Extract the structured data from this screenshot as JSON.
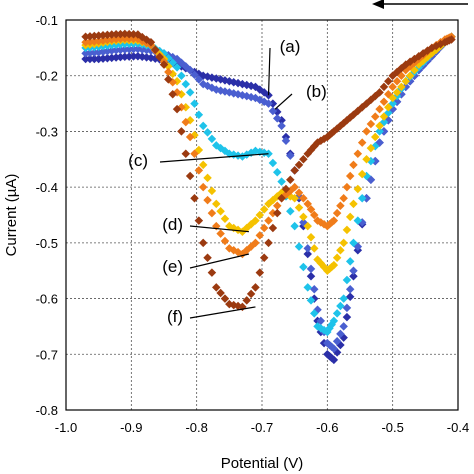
{
  "chart_data": {
    "type": "scatter",
    "title": "",
    "xlabel": "Potential (V)",
    "ylabel": "Current (µA)",
    "xlim": [
      -1.0,
      -0.4
    ],
    "ylim": [
      -0.8,
      -0.1
    ],
    "xticks": [
      "-1.0",
      "-0.9",
      "-0.8",
      "-0.7",
      "-0.6",
      "-0.5",
      "-0.4"
    ],
    "yticks": [
      "-0.1",
      "-0.2",
      "-0.3",
      "-0.4",
      "-0.5",
      "-0.6",
      "-0.7",
      "-0.8"
    ],
    "grid": true,
    "scan_direction": "decreasing potential (arrow pointing left, top-right)",
    "series": [
      {
        "name": "(a)",
        "color": "#2b2fa8",
        "x": [
          -0.97,
          -0.95,
          -0.93,
          -0.91,
          -0.89,
          -0.87,
          -0.85,
          -0.83,
          -0.81,
          -0.79,
          -0.77,
          -0.75,
          -0.73,
          -0.71,
          -0.69,
          -0.67,
          -0.65,
          -0.63,
          -0.615,
          -0.6,
          -0.59,
          -0.575,
          -0.56,
          -0.54,
          -0.52,
          -0.5,
          -0.48,
          -0.46,
          -0.44,
          -0.42,
          -0.41
        ],
        "y": [
          -0.17,
          -0.17,
          -0.168,
          -0.166,
          -0.165,
          -0.168,
          -0.172,
          -0.18,
          -0.19,
          -0.2,
          -0.205,
          -0.21,
          -0.215,
          -0.22,
          -0.235,
          -0.28,
          -0.37,
          -0.52,
          -0.64,
          -0.7,
          -0.71,
          -0.67,
          -0.56,
          -0.42,
          -0.32,
          -0.26,
          -0.22,
          -0.19,
          -0.165,
          -0.14,
          -0.13
        ]
      },
      {
        "name": "(b)",
        "color": "#4a5fd0",
        "x": [
          -0.97,
          -0.95,
          -0.93,
          -0.91,
          -0.89,
          -0.87,
          -0.85,
          -0.83,
          -0.81,
          -0.79,
          -0.77,
          -0.75,
          -0.73,
          -0.71,
          -0.69,
          -0.67,
          -0.65,
          -0.63,
          -0.615,
          -0.6,
          -0.59,
          -0.575,
          -0.56,
          -0.54,
          -0.52,
          -0.5,
          -0.48,
          -0.46,
          -0.44,
          -0.42,
          -0.41
        ],
        "y": [
          -0.16,
          -0.158,
          -0.155,
          -0.153,
          -0.152,
          -0.155,
          -0.16,
          -0.17,
          -0.19,
          -0.215,
          -0.225,
          -0.23,
          -0.235,
          -0.24,
          -0.25,
          -0.29,
          -0.37,
          -0.51,
          -0.62,
          -0.68,
          -0.69,
          -0.65,
          -0.55,
          -0.42,
          -0.32,
          -0.26,
          -0.22,
          -0.19,
          -0.165,
          -0.14,
          -0.13
        ]
      },
      {
        "name": "(c)",
        "color": "#1ec3ea",
        "x": [
          -0.97,
          -0.95,
          -0.93,
          -0.91,
          -0.89,
          -0.87,
          -0.85,
          -0.83,
          -0.81,
          -0.79,
          -0.77,
          -0.75,
          -0.73,
          -0.71,
          -0.69,
          -0.67,
          -0.65,
          -0.63,
          -0.615,
          -0.6,
          -0.59,
          -0.575,
          -0.56,
          -0.54,
          -0.52,
          -0.5,
          -0.48,
          -0.46,
          -0.44,
          -0.42,
          -0.41
        ],
        "y": [
          -0.15,
          -0.148,
          -0.145,
          -0.143,
          -0.142,
          -0.147,
          -0.16,
          -0.185,
          -0.23,
          -0.29,
          -0.325,
          -0.34,
          -0.345,
          -0.335,
          -0.34,
          -0.39,
          -0.47,
          -0.58,
          -0.65,
          -0.66,
          -0.64,
          -0.6,
          -0.5,
          -0.38,
          -0.3,
          -0.25,
          -0.21,
          -0.185,
          -0.16,
          -0.14,
          -0.13
        ]
      },
      {
        "name": "(d)",
        "color": "#f5c200",
        "x": [
          -0.97,
          -0.95,
          -0.93,
          -0.91,
          -0.89,
          -0.87,
          -0.85,
          -0.83,
          -0.81,
          -0.79,
          -0.77,
          -0.75,
          -0.73,
          -0.71,
          -0.69,
          -0.67,
          -0.65,
          -0.63,
          -0.615,
          -0.6,
          -0.59,
          -0.575,
          -0.56,
          -0.54,
          -0.52,
          -0.5,
          -0.48,
          -0.46,
          -0.44,
          -0.42,
          -0.41
        ],
        "y": [
          -0.145,
          -0.142,
          -0.138,
          -0.136,
          -0.137,
          -0.145,
          -0.17,
          -0.21,
          -0.28,
          -0.36,
          -0.43,
          -0.47,
          -0.48,
          -0.46,
          -0.43,
          -0.41,
          -0.42,
          -0.47,
          -0.53,
          -0.55,
          -0.54,
          -0.5,
          -0.43,
          -0.35,
          -0.29,
          -0.24,
          -0.21,
          -0.18,
          -0.16,
          -0.14,
          -0.13
        ]
      },
      {
        "name": "(e)",
        "color": "#f07c1a",
        "x": [
          -0.97,
          -0.95,
          -0.93,
          -0.91,
          -0.89,
          -0.87,
          -0.85,
          -0.83,
          -0.81,
          -0.79,
          -0.77,
          -0.75,
          -0.73,
          -0.71,
          -0.69,
          -0.67,
          -0.65,
          -0.63,
          -0.615,
          -0.6,
          -0.59,
          -0.575,
          -0.56,
          -0.54,
          -0.52,
          -0.5,
          -0.48,
          -0.46,
          -0.44,
          -0.42,
          -0.41
        ],
        "y": [
          -0.14,
          -0.138,
          -0.135,
          -0.133,
          -0.134,
          -0.145,
          -0.175,
          -0.23,
          -0.31,
          -0.4,
          -0.47,
          -0.51,
          -0.52,
          -0.5,
          -0.46,
          -0.42,
          -0.4,
          -0.43,
          -0.46,
          -0.47,
          -0.46,
          -0.42,
          -0.36,
          -0.3,
          -0.26,
          -0.22,
          -0.19,
          -0.17,
          -0.15,
          -0.135,
          -0.13
        ]
      },
      {
        "name": "(f)",
        "color": "#9b3a10",
        "x": [
          -0.97,
          -0.95,
          -0.93,
          -0.91,
          -0.89,
          -0.87,
          -0.85,
          -0.83,
          -0.81,
          -0.79,
          -0.77,
          -0.75,
          -0.73,
          -0.71,
          -0.69,
          -0.67,
          -0.65,
          -0.63,
          -0.615,
          -0.6,
          -0.59,
          -0.575,
          -0.56,
          -0.54,
          -0.52,
          -0.5,
          -0.48,
          -0.46,
          -0.44,
          -0.42,
          -0.41
        ],
        "y": [
          -0.13,
          -0.128,
          -0.126,
          -0.125,
          -0.126,
          -0.14,
          -0.18,
          -0.26,
          -0.38,
          -0.5,
          -0.58,
          -0.61,
          -0.615,
          -0.58,
          -0.5,
          -0.42,
          -0.37,
          -0.34,
          -0.32,
          -0.31,
          -0.3,
          -0.285,
          -0.27,
          -0.25,
          -0.23,
          -0.2,
          -0.18,
          -0.165,
          -0.15,
          -0.14,
          -0.135
        ]
      }
    ],
    "annotations": [
      {
        "label": "(a)",
        "target_x": -0.69,
        "target_y": -0.235
      },
      {
        "label": "(b)",
        "target_x": -0.68,
        "target_y": -0.26
      },
      {
        "label": "(c)",
        "target_x": -0.69,
        "target_y": -0.34
      },
      {
        "label": "(d)",
        "target_x": -0.72,
        "target_y": -0.48
      },
      {
        "label": "(e)",
        "target_x": -0.72,
        "target_y": -0.52
      },
      {
        "label": "(f)",
        "target_x": -0.71,
        "target_y": -0.615
      }
    ]
  }
}
